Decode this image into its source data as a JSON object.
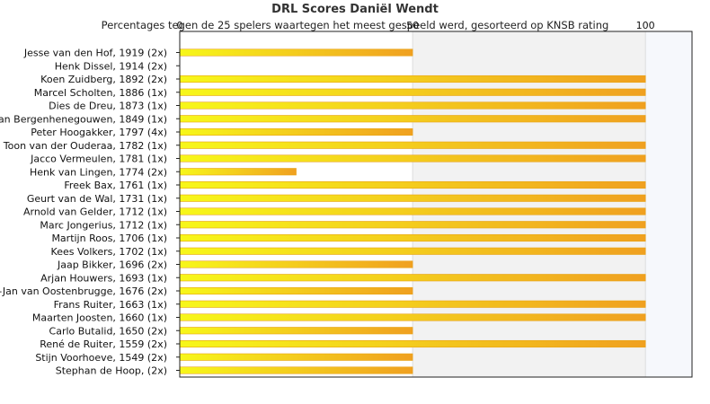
{
  "chart_data": {
    "type": "bar",
    "orientation": "horizontal",
    "title": "DRL Scores Daniël Wendt",
    "subtitle": "Percentages tegen de 25 spelers waartegen het meest gespeeld werd, gesorteerd op KNSB rating",
    "xlim": [
      0,
      110
    ],
    "xticks": [
      "0",
      "50",
      "100"
    ],
    "xtick_values": [
      0,
      50,
      100
    ],
    "categories": [
      "Jesse van den Hof, 1919 (2x)",
      "Henk Dissel, 1914 (2x)",
      "Koen Zuidberg, 1892 (2x)",
      "Marcel Scholten, 1886 (1x)",
      "Dies de Dreu, 1873 (1x)",
      "Kees van Bergenhenegouwen, 1849 (1x)",
      "Peter Hoogakker, 1797 (4x)",
      "Toon van der Ouderaa, 1782 (1x)",
      "Jacco Vermeulen, 1781 (1x)",
      "Henk van Lingen, 1774 (2x)",
      "Freek Bax, 1761 (1x)",
      "Geurt van de Wal, 1731 (1x)",
      "Arnold van Gelder, 1712 (1x)",
      "Marc Jongerius, 1712 (1x)",
      "Martijn Roos, 1706 (1x)",
      "Kees Volkers, 1702 (1x)",
      "Jaap Bikker, 1696 (2x)",
      "Arjan Houwers, 1693 (1x)",
      "Gert-Jan van Oostenbrugge, 1676 (2x)",
      "Frans Ruiter, 1663 (1x)",
      "Maarten Joosten, 1660 (1x)",
      "Carlo Butalid, 1650 (2x)",
      "René de Ruiter, 1559 (2x)",
      "Stijn Voorhoeve, 1549 (2x)",
      "Stephan de Hoop,  (2x)"
    ],
    "values": [
      50,
      0,
      100,
      100,
      100,
      100,
      50,
      100,
      100,
      25,
      100,
      100,
      100,
      100,
      100,
      100,
      50,
      100,
      50,
      100,
      100,
      50,
      100,
      50,
      50
    ],
    "grid": true,
    "legend": "none",
    "colors": {
      "bar_start": "#f7f71a",
      "bar_end": "#f0a020",
      "bar_edge": "#e8a317",
      "band_50_100": "#f2f2f2",
      "band_100_110": "#f6f8fc",
      "grid": "#dddddd",
      "axis": "#222222"
    }
  }
}
